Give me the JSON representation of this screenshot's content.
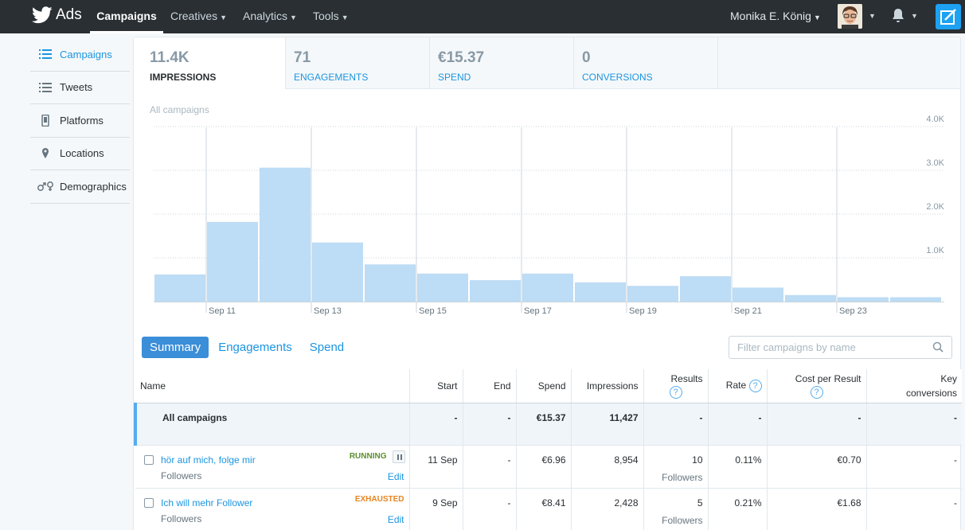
{
  "nav": {
    "brand": "Ads",
    "items": [
      {
        "label": "Campaigns",
        "active": true
      },
      {
        "label": "Creatives"
      },
      {
        "label": "Analytics"
      },
      {
        "label": "Tools"
      }
    ],
    "user": "Monika E. König"
  },
  "sidebar": {
    "items": [
      {
        "label": "Campaigns",
        "icon": "list-icon",
        "active": true
      },
      {
        "label": "Tweets",
        "icon": "list-icon"
      },
      {
        "label": "Platforms",
        "icon": "phone-icon"
      },
      {
        "label": "Locations",
        "icon": "pin-icon"
      },
      {
        "label": "Demographics",
        "icon": "gender-icon"
      }
    ]
  },
  "metrics": [
    {
      "value": "11.4K",
      "label": "IMPRESSIONS",
      "active": true
    },
    {
      "value": "71",
      "label": "ENGAGEMENTS"
    },
    {
      "value": "€15.37",
      "label": "SPEND"
    },
    {
      "value": "0",
      "label": "CONVERSIONS"
    }
  ],
  "chart_caption": "All campaigns",
  "chart_data": {
    "type": "bar",
    "categories": [
      "Sep 10",
      "Sep 11",
      "Sep 12",
      "Sep 13",
      "Sep 14",
      "Sep 15",
      "Sep 16",
      "Sep 17",
      "Sep 18",
      "Sep 19",
      "Sep 20",
      "Sep 21",
      "Sep 22",
      "Sep 23",
      "Sep 24"
    ],
    "values": [
      620,
      1820,
      3060,
      1350,
      850,
      640,
      490,
      640,
      440,
      360,
      580,
      320,
      150,
      100,
      100
    ],
    "x_tick_labels": [
      "Sep 11",
      "Sep 13",
      "Sep 15",
      "Sep 17",
      "Sep 19",
      "Sep 21",
      "Sep 23"
    ],
    "y_tick_labels": [
      "1.0K",
      "2.0K",
      "3.0K",
      "4.0K"
    ],
    "ylim": [
      0,
      4000
    ],
    "bar_color": "#bddcf5",
    "grid": true
  },
  "views": [
    "Summary",
    "Engagements",
    "Spend"
  ],
  "filter_placeholder": "Filter campaigns by name",
  "table": {
    "headers": {
      "name": "Name",
      "start": "Start",
      "end": "End",
      "spend": "Spend",
      "impressions": "Impressions",
      "results": "Results",
      "rate": "Rate",
      "cpr": "Cost per Result",
      "key1": "Key",
      "key2": "conversions",
      "help": "?"
    },
    "all": {
      "name": "All campaigns",
      "start": "-",
      "end": "-",
      "spend": "€15.37",
      "impressions": "11,427",
      "results": "-",
      "rate": "-",
      "cpr": "-",
      "key": "-"
    },
    "rows": [
      {
        "name": "hör auf mich, folge mir",
        "objective": "Followers",
        "status": "RUNNING",
        "edit": "Edit",
        "start": "11 Sep",
        "end": "-",
        "spend": "€6.96",
        "impressions": "8,954",
        "results": "10",
        "results_unit": "Followers",
        "rate": "0.11%",
        "cpr": "€0.70",
        "key": "-"
      },
      {
        "name": "Ich will mehr Follower",
        "objective": "Followers",
        "status": "EXHAUSTED",
        "edit": "Edit",
        "start": "9 Sep",
        "end": "-",
        "spend": "€8.41",
        "impressions": "2,428",
        "results": "5",
        "results_unit": "Followers",
        "rate": "0.21%",
        "cpr": "€1.68",
        "key": "-"
      }
    ]
  }
}
